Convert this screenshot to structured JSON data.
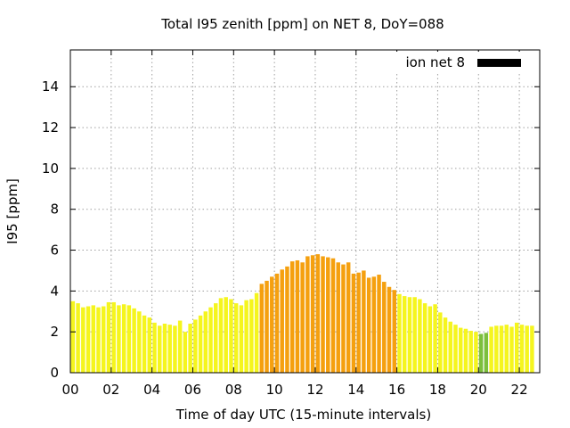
{
  "chart_data": {
    "type": "bar",
    "title": "Total I95 zenith [ppm] on NET 8, DoY=088",
    "xlabel": "Time of day UTC (15-minute intervals)",
    "ylabel": "I95 [ppm]",
    "xlim": [
      0,
      23
    ],
    "ylim": [
      0,
      15.8
    ],
    "xticks": [
      0,
      2,
      4,
      6,
      8,
      10,
      12,
      14,
      16,
      18,
      20,
      22
    ],
    "xtick_labels": [
      "00",
      "02",
      "04",
      "06",
      "08",
      "10",
      "12",
      "14",
      "16",
      "18",
      "20",
      "22"
    ],
    "yticks": [
      0,
      2,
      4,
      6,
      8,
      10,
      12,
      14
    ],
    "ytick_labels": [
      "0",
      "2",
      "4",
      "6",
      "8",
      "10",
      "12",
      "14"
    ],
    "grid": true,
    "legend": {
      "label": "ion net 8",
      "color": "#000000",
      "position": "top-right"
    },
    "interval_hours": 0.25,
    "colors": {
      "low": "#f5f51e",
      "mid": "#f5a00f",
      "min": "#7cbf3c"
    },
    "series": [
      {
        "name": "ion net 8",
        "values": [
          3.5,
          3.4,
          3.2,
          3.25,
          3.3,
          3.2,
          3.25,
          3.45,
          3.45,
          3.3,
          3.35,
          3.3,
          3.15,
          3.0,
          2.8,
          2.7,
          2.45,
          2.3,
          2.4,
          2.35,
          2.3,
          2.55,
          2.0,
          2.4,
          2.6,
          2.8,
          3.0,
          3.2,
          3.4,
          3.65,
          3.7,
          3.6,
          3.4,
          3.3,
          3.55,
          3.6,
          3.9,
          4.35,
          4.5,
          4.7,
          4.85,
          5.05,
          5.2,
          5.45,
          5.5,
          5.4,
          5.7,
          5.75,
          5.8,
          5.7,
          5.65,
          5.6,
          5.4,
          5.3,
          5.4,
          4.85,
          4.9,
          5.0,
          4.65,
          4.7,
          4.8,
          4.45,
          4.2,
          4.05,
          3.85,
          3.75,
          3.7,
          3.7,
          3.6,
          3.4,
          3.25,
          3.35,
          2.95,
          2.7,
          2.5,
          2.35,
          2.2,
          2.15,
          2.05,
          2.0,
          1.9,
          1.95,
          2.25,
          2.3,
          2.3,
          2.35,
          2.25,
          2.45,
          2.35,
          2.3,
          2.3
        ],
        "bar_colors": [
          "low",
          "low",
          "low",
          "low",
          "low",
          "low",
          "low",
          "low",
          "low",
          "low",
          "low",
          "low",
          "low",
          "low",
          "low",
          "low",
          "low",
          "low",
          "low",
          "low",
          "low",
          "low",
          "low",
          "low",
          "low",
          "low",
          "low",
          "low",
          "low",
          "low",
          "low",
          "low",
          "low",
          "low",
          "low",
          "low",
          "low",
          "mid",
          "mid",
          "mid",
          "mid",
          "mid",
          "mid",
          "mid",
          "mid",
          "mid",
          "mid",
          "mid",
          "mid",
          "mid",
          "mid",
          "mid",
          "mid",
          "mid",
          "mid",
          "mid",
          "mid",
          "mid",
          "mid",
          "mid",
          "mid",
          "mid",
          "mid",
          "mid",
          "low",
          "low",
          "low",
          "low",
          "low",
          "low",
          "low",
          "low",
          "low",
          "low",
          "low",
          "low",
          "low",
          "low",
          "low",
          "low",
          "min",
          "min",
          "low",
          "low",
          "low",
          "low",
          "low",
          "low",
          "low",
          "low",
          "low"
        ]
      }
    ]
  }
}
